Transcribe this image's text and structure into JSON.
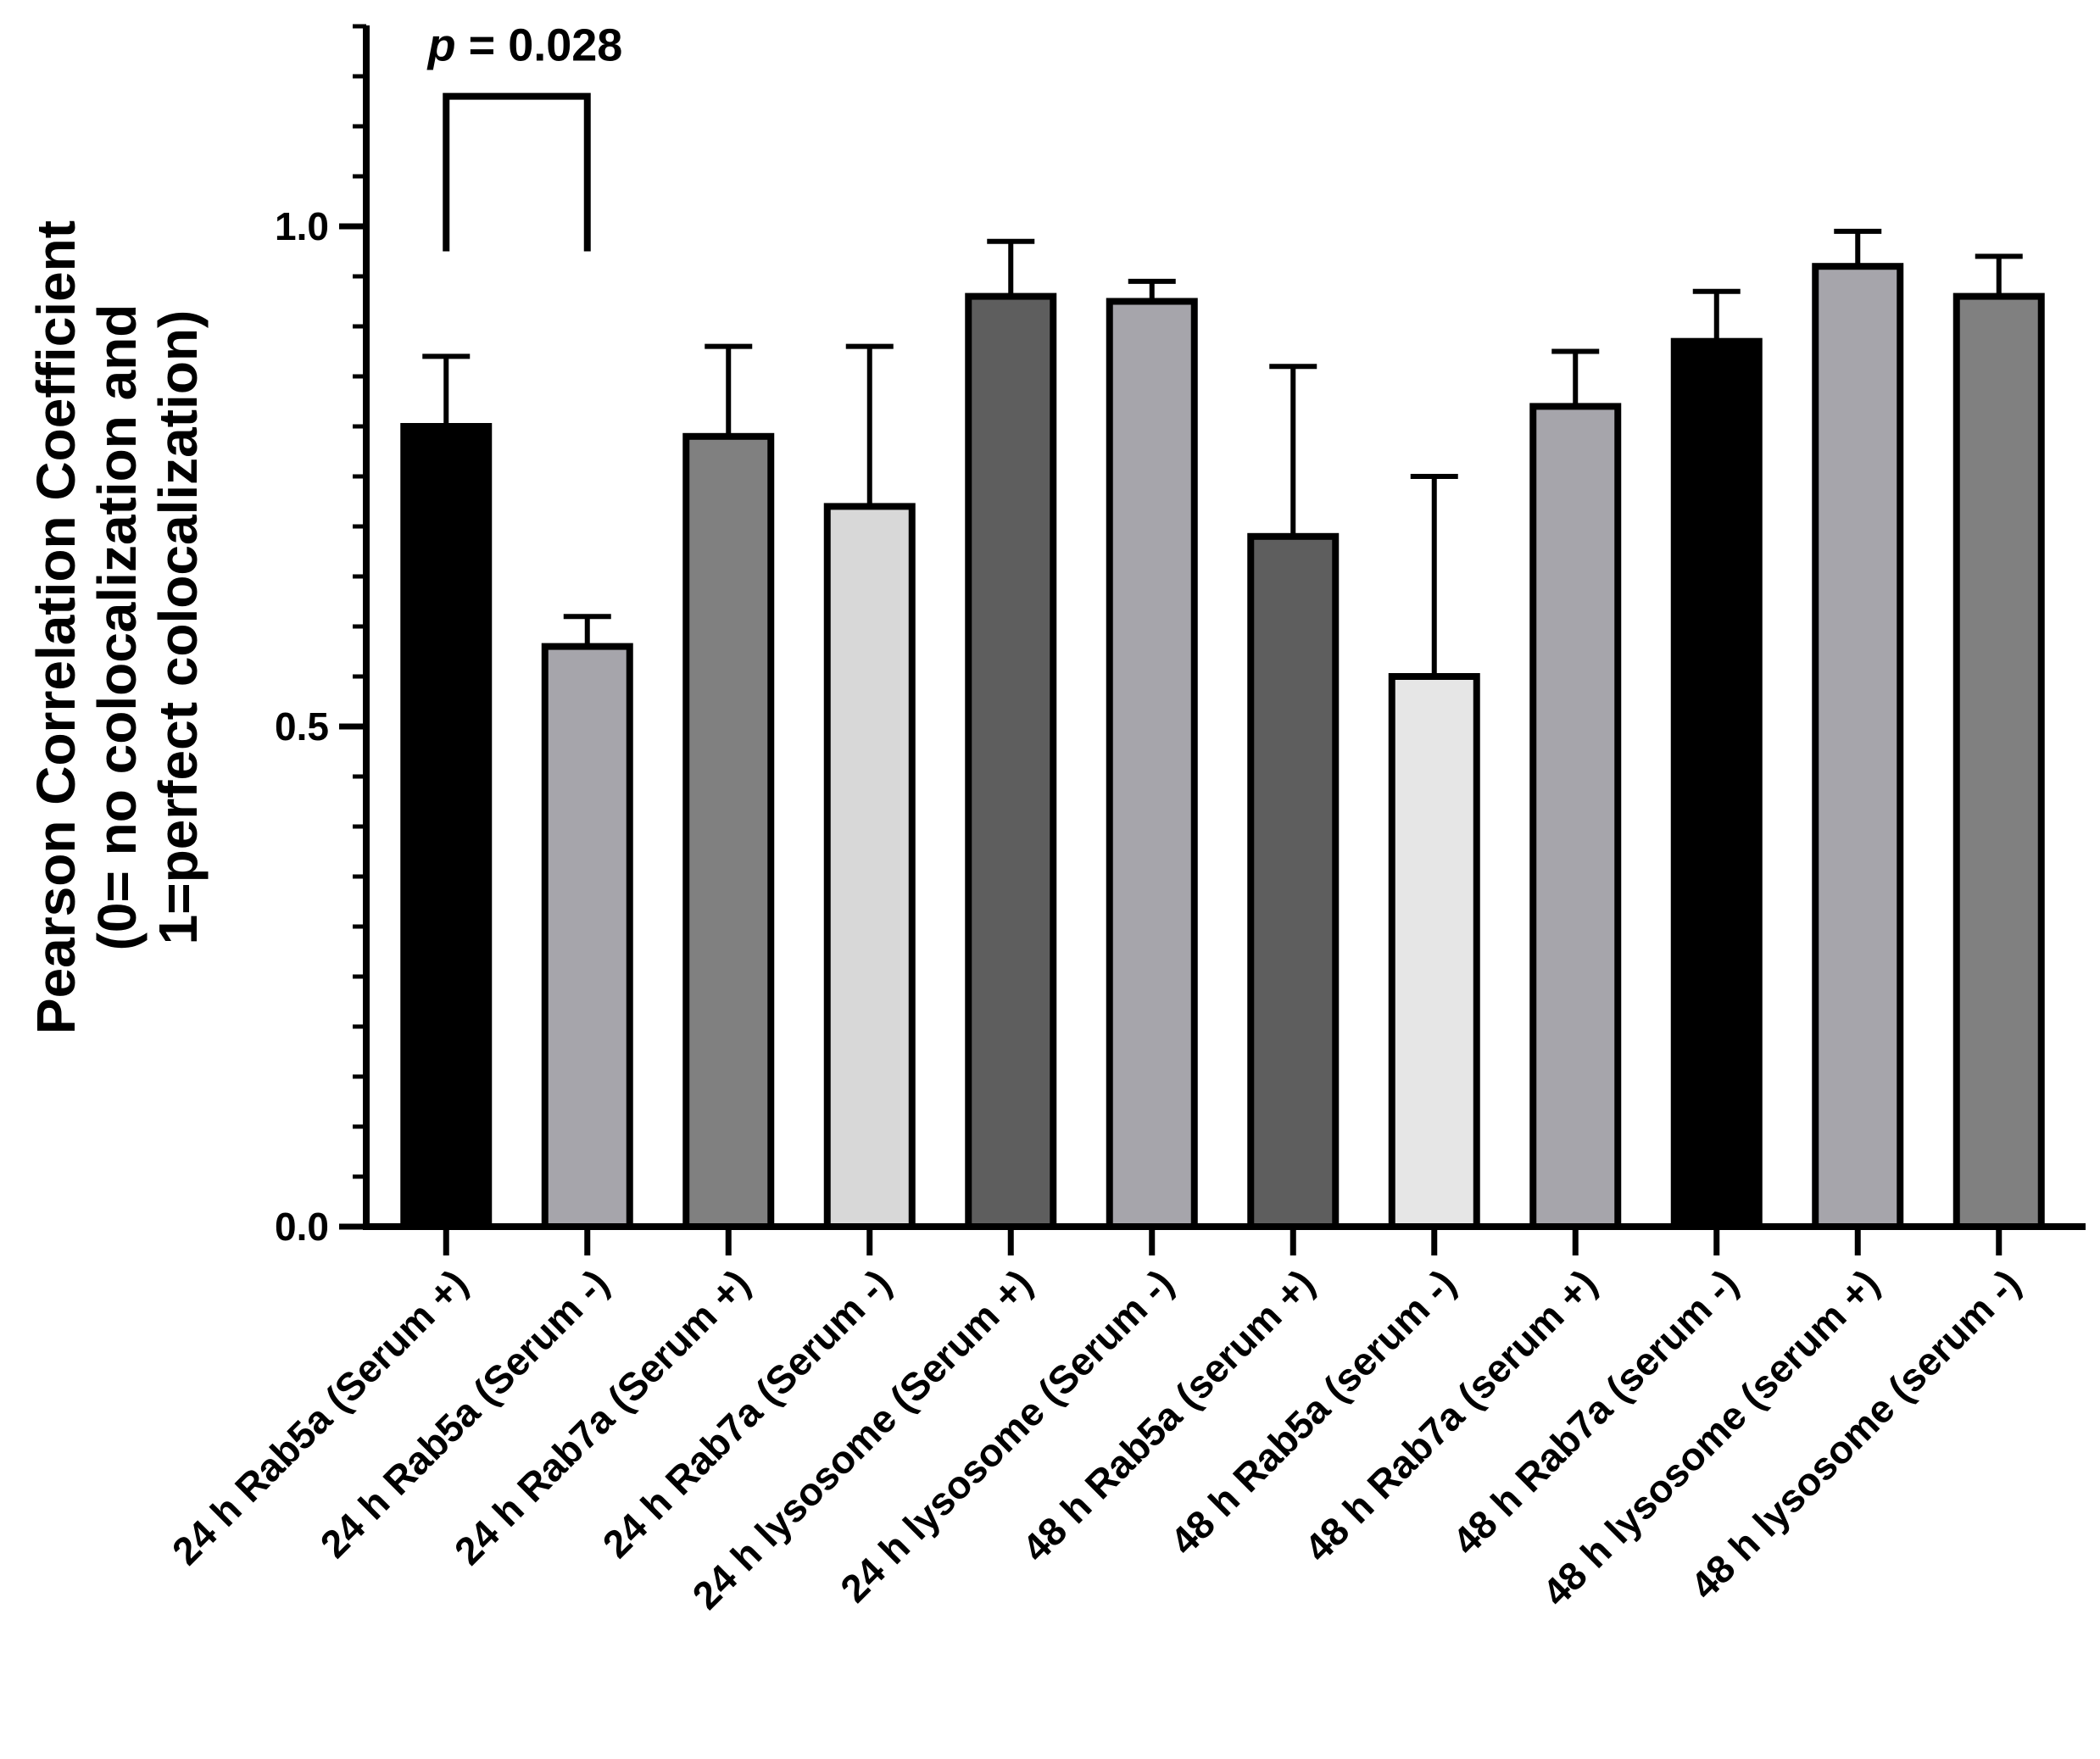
{
  "chart_data": {
    "type": "bar",
    "ylabel_lines": [
      "Pearson Correlation Coefficient",
      "(0= no colocalization and",
      "1=perfect colocalization)"
    ],
    "xlabel": "",
    "ylim": [
      0,
      1.2
    ],
    "y_ticks": [
      0.0,
      0.5,
      1.0
    ],
    "y_tick_labels": [
      "0.0",
      "0.5",
      "1.0"
    ],
    "y_minor_step": 0.05,
    "categories": [
      "24 h Rab5a (Serum +)",
      "24 h Rab5a (Serum -)",
      "24 h Rab7a (Serum +)",
      "24 h Rab7a (Serum -)",
      "24 h lysosome (Serum +)",
      "24 h lysosome (Serum -)",
      "48 h Rab5a (serum +)",
      "48 h Rab5a (serum -)",
      "48 h Rab7a (serum +)",
      "48 h Rab7a (serum -)",
      "48 h lysosome (serum +)",
      "48 h lysosome (serum -)"
    ],
    "values": [
      0.8,
      0.58,
      0.79,
      0.72,
      0.93,
      0.925,
      0.69,
      0.55,
      0.82,
      0.885,
      0.96,
      0.93
    ],
    "errors": [
      0.07,
      0.03,
      0.09,
      0.16,
      0.055,
      0.02,
      0.17,
      0.2,
      0.055,
      0.05,
      0.035,
      0.04
    ],
    "colors": [
      "#000000",
      "#a6a5ab",
      "#808080",
      "#d8d8d8",
      "#5e5e5e",
      "#a6a5ab",
      "#5e5e5e",
      "#e6e6e6",
      "#a6a5ab",
      "#000000",
      "#a6a5ab",
      "#808080"
    ],
    "annotations": [
      {
        "type": "bracket",
        "from_index": 0,
        "to_index": 1,
        "y": 1.13,
        "drop_to": 0.975,
        "p_label": "p",
        "value_label": " = 0.028"
      }
    ]
  }
}
